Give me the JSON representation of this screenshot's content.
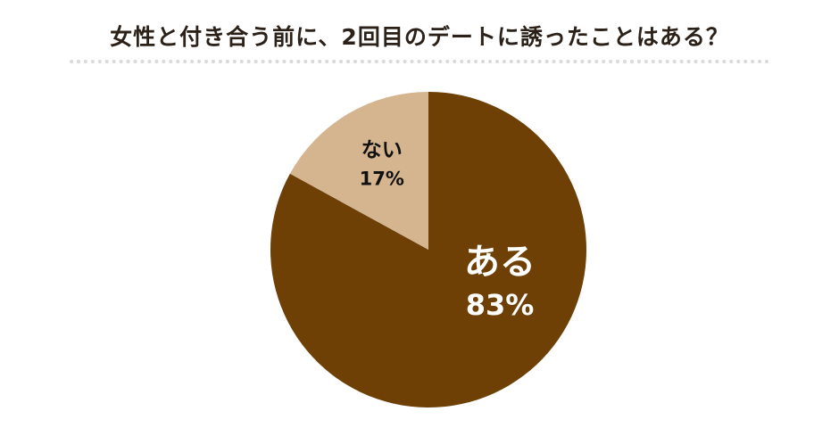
{
  "chart_data": {
    "type": "pie",
    "title": "女性と付き合う前に、2回目のデートに誘ったことはある？",
    "slices": [
      {
        "label": "ある",
        "value": 83,
        "display": "83%",
        "color": "#6e4005",
        "label_color": "#ffffff"
      },
      {
        "label": "ない",
        "value": 17,
        "display": "17%",
        "color": "#d4b58f",
        "label_color": "#111111"
      }
    ],
    "start_angle_deg": 0,
    "direction": "clockwise",
    "legend": "none"
  }
}
